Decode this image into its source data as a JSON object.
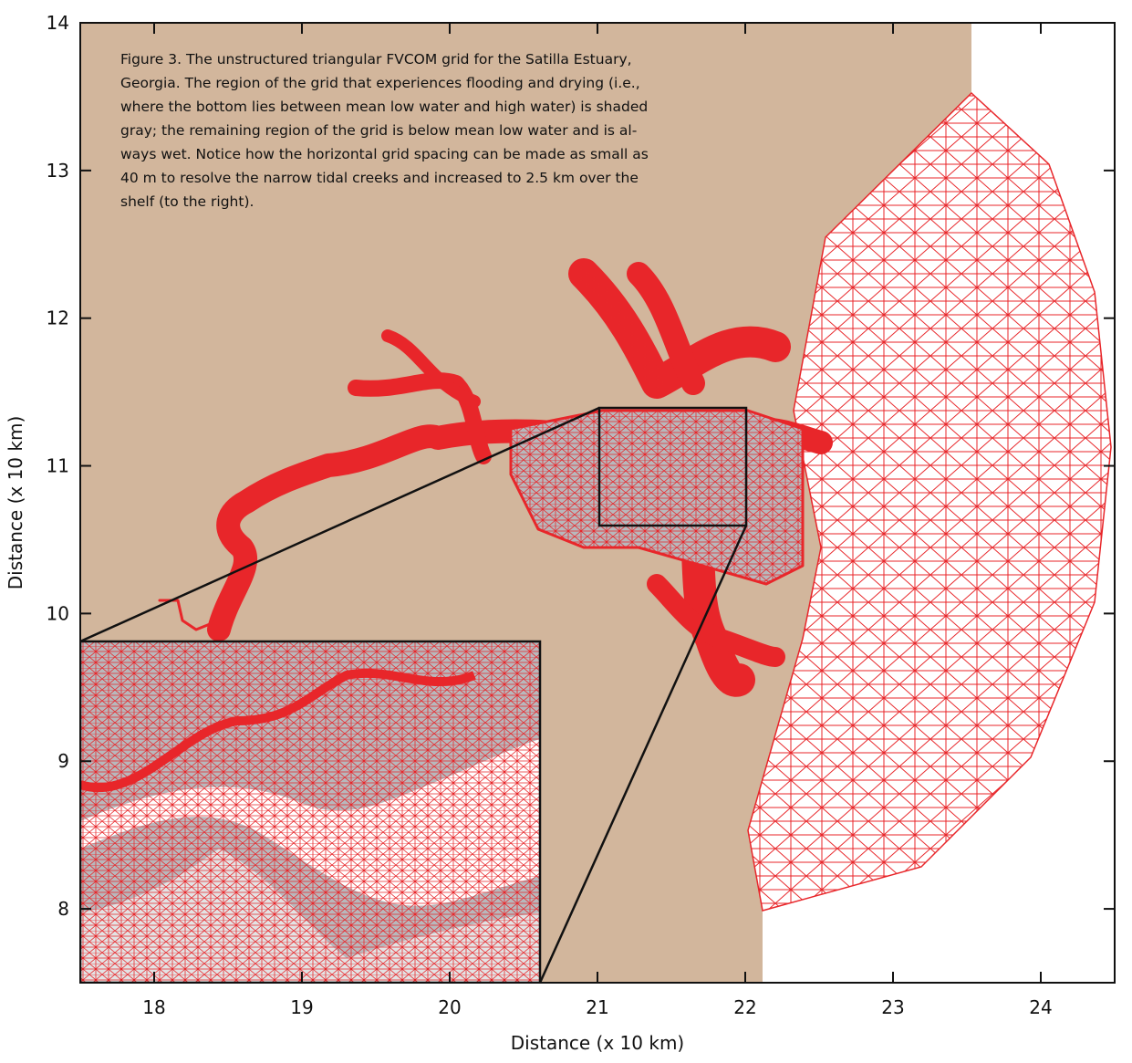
{
  "chart_data": {
    "type": "mesh",
    "caption_lines": [
      "Figure 3. The unstructured triangular FVCOM grid for the Satilla Estuary,",
      "Georgia. The region of the grid that experiences flooding and drying (i.e.,",
      "where the bottom lies between mean low water and high water) is shaded",
      "gray; the remaining region of the grid is below mean low water and is al-",
      "ways wet. Notice how the horizontal grid spacing can be made as small as",
      "40 m to resolve the narrow tidal creeks and increased to 2.5 km over the",
      "shelf (to the right)."
    ],
    "xlabel": "Distance (x 10 km)",
    "ylabel": "Distance (x 10 km)",
    "xlim": [
      17.5,
      24.5
    ],
    "ylim": [
      7.5,
      14
    ],
    "xticks": [
      18,
      19,
      20,
      21,
      22,
      23,
      24
    ],
    "yticks": [
      8,
      9,
      10,
      11,
      12,
      13,
      14
    ]
  }
}
